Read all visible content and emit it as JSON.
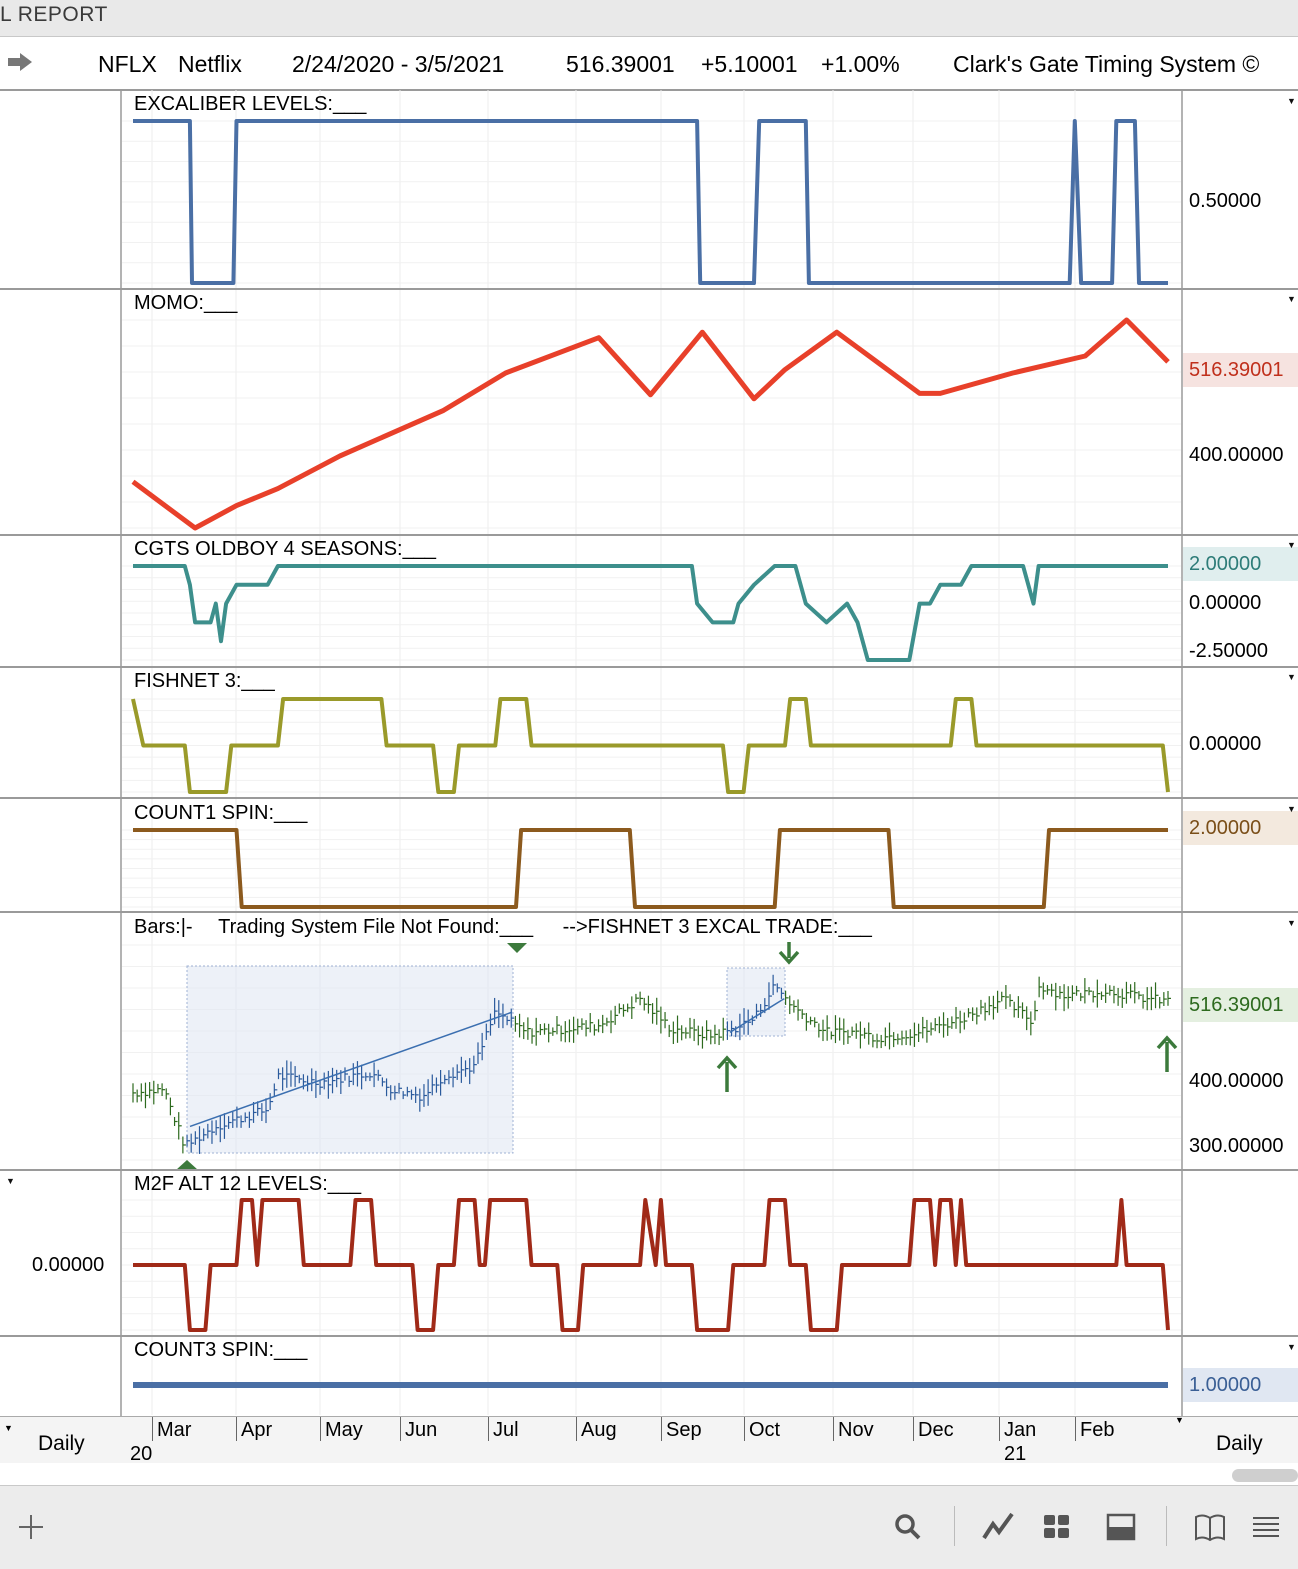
{
  "window_title": "L REPORT",
  "header": {
    "ticker": "NFLX",
    "company": "Netflix",
    "date_range": "2/24/2020 - 3/5/2021",
    "price": "516.39001",
    "change": "+5.10001",
    "change_pct": "+1.00%",
    "system": "Clark's Gate Timing System ©"
  },
  "colors": {
    "excaliber": "#4a6fa5",
    "momo": "#e8402a",
    "oldboy": "#3d8f8c",
    "fishnet": "#9a9a2a",
    "count1": "#8c5a1e",
    "bars": "#2d6a1e",
    "bars_highlight": "#2a5a9c",
    "m2f": "#a02a18",
    "count3": "#4a6fa5",
    "signal_arrow": "#3c7a3c"
  },
  "panels": {
    "excaliber": {
      "title": "EXCALIBER LEVELS:___",
      "right_label": "0.50000"
    },
    "momo": {
      "title": "MOMO:___",
      "right_value": "516.39001",
      "right_label": "400.00000"
    },
    "oldboy": {
      "title": "CGTS OLDBOY 4 SEASONS:___",
      "right_value": "2.00000",
      "labels": [
        "0.00000",
        "-2.50000"
      ]
    },
    "fishnet": {
      "title": "FISHNET 3:___",
      "right_label": "0.00000"
    },
    "count1": {
      "title": "COUNT1 SPIN:___",
      "right_value": "2.00000"
    },
    "bars": {
      "title_bars": "Bars:",
      "title_sym": "|-",
      "title_system": "Trading System File Not Found:___",
      "title_trade": "-->FISHNET 3 EXCAL TRADE:___",
      "right_value": "516.39001",
      "labels": [
        "400.00000",
        "300.00000"
      ]
    },
    "m2f": {
      "title": "M2F ALT 12 LEVELS:___",
      "left_label": "0.00000"
    },
    "count3": {
      "title": "COUNT3 SPIN:___",
      "right_value": "1.00000"
    }
  },
  "x_axis": {
    "period_left": "Daily",
    "period_right": "Daily",
    "months": [
      "Mar",
      "Apr",
      "May",
      "Jun",
      "Jul",
      "Aug",
      "Sep",
      "Oct",
      "Nov",
      "Dec",
      "Jan",
      "Feb"
    ],
    "years": [
      "20",
      "21"
    ]
  },
  "toolbar": {
    "icons": [
      "plus-icon",
      "search-icon",
      "chart-line-icon",
      "grid-icon",
      "panel-layout-icon",
      "book-icon",
      "menu-icon"
    ]
  },
  "chart_data": [
    {
      "type": "line",
      "title": "EXCALIBER LEVELS:___",
      "x": [
        "Feb",
        "Mar",
        "Mar",
        "Apr",
        "Apr",
        "Sep",
        "Sep",
        "Oct",
        "Oct",
        "Oct",
        "Oct",
        "Jan",
        "Jan",
        "Jan",
        "Jan",
        "Feb",
        "Feb",
        "Feb",
        "Feb",
        "Mar"
      ],
      "series": [
        {
          "values": [
            1,
            1,
            0,
            0,
            1,
            1,
            0,
            0,
            1,
            1,
            0,
            0,
            1,
            0,
            0,
            1,
            1,
            0,
            0,
            0
          ]
        }
      ],
      "ticks": [
        "0.50000"
      ]
    },
    {
      "type": "line",
      "title": "MOMO:___",
      "points": [
        [
          0.0,
          340
        ],
        [
          0.06,
          272
        ],
        [
          0.1,
          305
        ],
        [
          0.14,
          330
        ],
        [
          0.2,
          378
        ],
        [
          0.3,
          445
        ],
        [
          0.36,
          500
        ],
        [
          0.45,
          552
        ],
        [
          0.5,
          468
        ],
        [
          0.55,
          560
        ],
        [
          0.6,
          462
        ],
        [
          0.63,
          505
        ],
        [
          0.68,
          560
        ],
        [
          0.76,
          470
        ],
        [
          0.78,
          470
        ],
        [
          0.85,
          500
        ],
        [
          0.92,
          525
        ],
        [
          0.96,
          578
        ],
        [
          1.0,
          516.39
        ]
      ],
      "ticks": [
        "400.00000"
      ],
      "last_value": "516.39001"
    },
    {
      "type": "line",
      "title": "CGTS OLDBOY 4 SEASONS:___",
      "points": [
        [
          0.0,
          2
        ],
        [
          0.05,
          2
        ],
        [
          0.055,
          1
        ],
        [
          0.06,
          -1
        ],
        [
          0.075,
          -1
        ],
        [
          0.08,
          0
        ],
        [
          0.085,
          -2
        ],
        [
          0.09,
          0
        ],
        [
          0.1,
          1
        ],
        [
          0.13,
          1
        ],
        [
          0.14,
          2
        ],
        [
          0.54,
          2
        ],
        [
          0.545,
          0
        ],
        [
          0.56,
          -1
        ],
        [
          0.58,
          -1
        ],
        [
          0.585,
          0
        ],
        [
          0.6,
          1
        ],
        [
          0.62,
          2
        ],
        [
          0.64,
          2
        ],
        [
          0.65,
          0
        ],
        [
          0.67,
          -1
        ],
        [
          0.69,
          0
        ],
        [
          0.7,
          -1
        ],
        [
          0.71,
          -3
        ],
        [
          0.75,
          -3
        ],
        [
          0.76,
          0
        ],
        [
          0.77,
          0
        ],
        [
          0.78,
          1
        ],
        [
          0.8,
          1
        ],
        [
          0.81,
          2
        ],
        [
          0.86,
          2
        ],
        [
          0.87,
          0
        ],
        [
          0.875,
          2
        ],
        [
          1.0,
          2
        ]
      ],
      "ticks": [
        "2.00000",
        "0.00000",
        "-2.50000"
      ]
    },
    {
      "type": "line",
      "title": "FISHNET 3:___",
      "points": [
        [
          0.0,
          1
        ],
        [
          0.01,
          0
        ],
        [
          0.05,
          0
        ],
        [
          0.055,
          -1
        ],
        [
          0.09,
          -1
        ],
        [
          0.095,
          0
        ],
        [
          0.14,
          0
        ],
        [
          0.145,
          1
        ],
        [
          0.24,
          1
        ],
        [
          0.245,
          0
        ],
        [
          0.29,
          0
        ],
        [
          0.295,
          -1
        ],
        [
          0.31,
          -1
        ],
        [
          0.315,
          0
        ],
        [
          0.35,
          0
        ],
        [
          0.355,
          1
        ],
        [
          0.38,
          1
        ],
        [
          0.385,
          0
        ],
        [
          0.57,
          0
        ],
        [
          0.575,
          -1
        ],
        [
          0.59,
          -1
        ],
        [
          0.595,
          0
        ],
        [
          0.63,
          0
        ],
        [
          0.635,
          1
        ],
        [
          0.65,
          1
        ],
        [
          0.655,
          0
        ],
        [
          0.79,
          0
        ],
        [
          0.795,
          1
        ],
        [
          0.81,
          1
        ],
        [
          0.815,
          0
        ],
        [
          0.995,
          0
        ],
        [
          1.0,
          -1
        ]
      ],
      "ticks": [
        "0.00000"
      ]
    },
    {
      "type": "line",
      "title": "COUNT1 SPIN:___",
      "points": [
        [
          0.0,
          2
        ],
        [
          0.1,
          2
        ],
        [
          0.105,
          1
        ],
        [
          0.37,
          1
        ],
        [
          0.375,
          2
        ],
        [
          0.48,
          2
        ],
        [
          0.485,
          1
        ],
        [
          0.62,
          1
        ],
        [
          0.625,
          2
        ],
        [
          0.73,
          2
        ],
        [
          0.735,
          1
        ],
        [
          0.88,
          1
        ],
        [
          0.885,
          2
        ],
        [
          1.0,
          2
        ]
      ],
      "ticks": [
        "2.00000"
      ]
    },
    {
      "type": "line",
      "title": "Bars:",
      "points": [
        [
          0.0,
          380
        ],
        [
          0.03,
          385
        ],
        [
          0.05,
          300
        ],
        [
          0.08,
          330
        ],
        [
          0.13,
          355
        ],
        [
          0.14,
          405
        ],
        [
          0.18,
          395
        ],
        [
          0.23,
          410
        ],
        [
          0.25,
          385
        ],
        [
          0.28,
          375
        ],
        [
          0.3,
          405
        ],
        [
          0.33,
          420
        ],
        [
          0.35,
          500
        ],
        [
          0.38,
          470
        ],
        [
          0.45,
          480
        ],
        [
          0.49,
          520
        ],
        [
          0.52,
          475
        ],
        [
          0.56,
          465
        ],
        [
          0.58,
          475
        ],
        [
          0.6,
          490
        ],
        [
          0.62,
          540
        ],
        [
          0.64,
          505
        ],
        [
          0.67,
          470
        ],
        [
          0.7,
          470
        ],
        [
          0.72,
          462
        ],
        [
          0.76,
          470
        ],
        [
          0.8,
          490
        ],
        [
          0.84,
          520
        ],
        [
          0.87,
          485
        ],
        [
          0.875,
          540
        ],
        [
          0.9,
          525
        ],
        [
          0.94,
          532
        ],
        [
          0.98,
          520
        ],
        [
          1.0,
          516.39
        ]
      ],
      "ticks": [
        "400.00000",
        "300.00000"
      ],
      "last_value": "516.39001"
    },
    {
      "type": "line",
      "title": "M2F ALT 12 LEVELS:___",
      "points": [
        [
          0.0,
          0
        ],
        [
          0.05,
          0
        ],
        [
          0.055,
          -1
        ],
        [
          0.07,
          -1
        ],
        [
          0.075,
          0
        ],
        [
          0.1,
          0
        ],
        [
          0.105,
          1
        ],
        [
          0.115,
          1
        ],
        [
          0.12,
          0
        ],
        [
          0.125,
          1
        ],
        [
          0.16,
          1
        ],
        [
          0.165,
          0
        ],
        [
          0.21,
          0
        ],
        [
          0.215,
          1
        ],
        [
          0.23,
          1
        ],
        [
          0.235,
          0
        ],
        [
          0.27,
          0
        ],
        [
          0.275,
          -1
        ],
        [
          0.29,
          -1
        ],
        [
          0.295,
          0
        ],
        [
          0.31,
          0
        ],
        [
          0.315,
          1
        ],
        [
          0.33,
          1
        ],
        [
          0.335,
          0
        ],
        [
          0.34,
          0
        ],
        [
          0.345,
          1
        ],
        [
          0.38,
          1
        ],
        [
          0.385,
          0
        ],
        [
          0.41,
          0
        ],
        [
          0.415,
          -1
        ],
        [
          0.43,
          -1
        ],
        [
          0.435,
          0
        ],
        [
          0.49,
          0
        ],
        [
          0.495,
          1
        ],
        [
          0.505,
          0
        ],
        [
          0.51,
          1
        ],
        [
          0.515,
          0
        ],
        [
          0.54,
          0
        ],
        [
          0.545,
          -1
        ],
        [
          0.575,
          -1
        ],
        [
          0.58,
          0
        ],
        [
          0.61,
          0
        ],
        [
          0.615,
          1
        ],
        [
          0.63,
          1
        ],
        [
          0.635,
          0
        ],
        [
          0.65,
          0
        ],
        [
          0.655,
          -1
        ],
        [
          0.68,
          -1
        ],
        [
          0.685,
          0
        ],
        [
          0.75,
          0
        ],
        [
          0.755,
          1
        ],
        [
          0.77,
          1
        ],
        [
          0.775,
          0
        ],
        [
          0.78,
          1
        ],
        [
          0.79,
          1
        ],
        [
          0.795,
          0
        ],
        [
          0.8,
          1
        ],
        [
          0.805,
          0
        ],
        [
          0.95,
          0
        ],
        [
          0.955,
          1
        ],
        [
          0.96,
          0
        ],
        [
          0.995,
          0
        ],
        [
          1.0,
          -1
        ]
      ],
      "ticks": [
        "0.00000"
      ]
    },
    {
      "type": "line",
      "title": "COUNT3 SPIN:___",
      "points": [
        [
          0.0,
          1
        ],
        [
          1.0,
          1
        ]
      ],
      "ticks": [
        "1.00000"
      ]
    }
  ]
}
